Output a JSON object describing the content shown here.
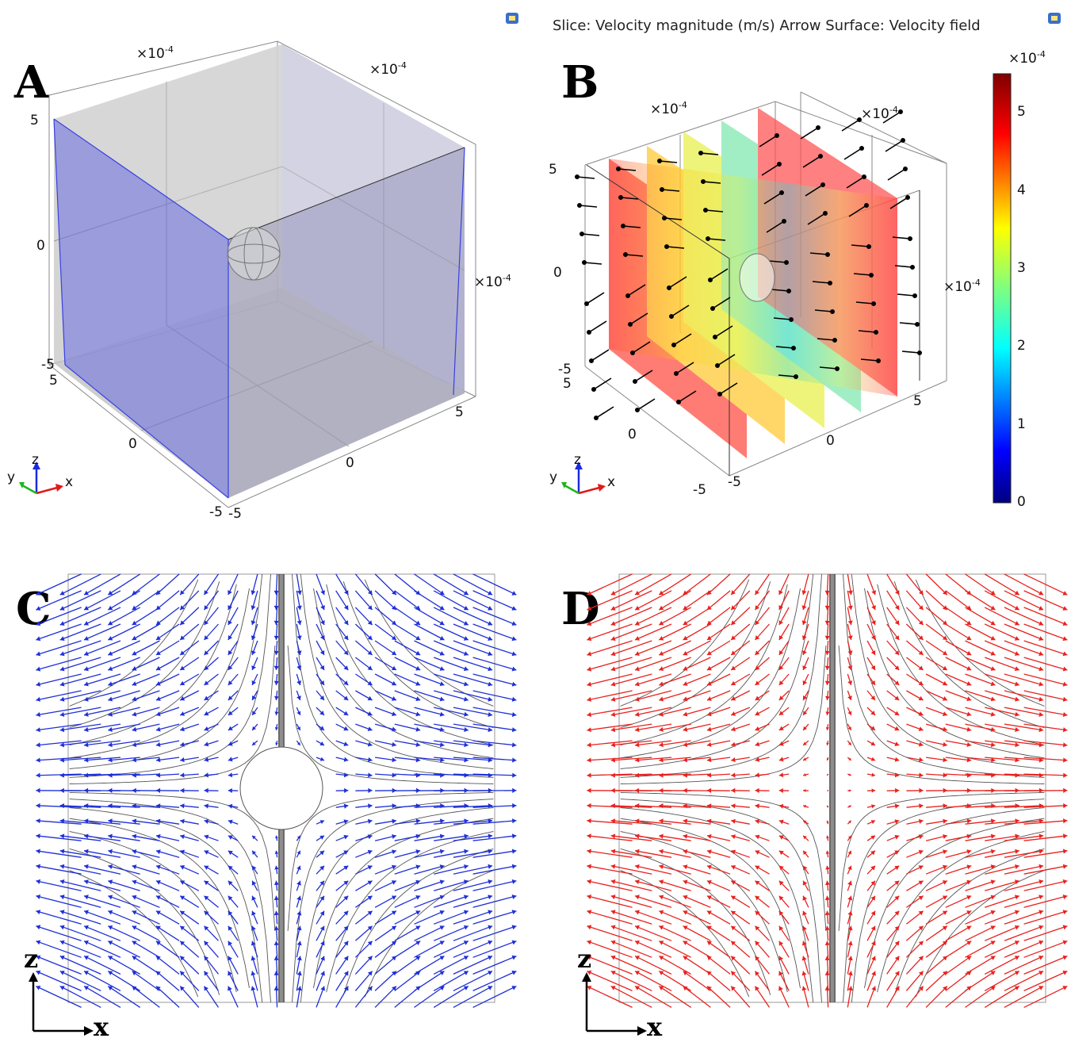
{
  "header": {
    "slice_title": "Slice: Velocity magnitude (m/s)  Arrow Surface: Velocity field"
  },
  "panels": {
    "a": {
      "letter": "A",
      "exponent_base": "×10",
      "exponent_power": "-4",
      "z_ticks": [
        "5",
        "0",
        "-5"
      ],
      "y_ticks": [
        "5",
        "0",
        "-5"
      ],
      "x_ticks": [
        "-5",
        "0",
        "5"
      ]
    },
    "b": {
      "letter": "B",
      "exponent_base": "×10",
      "exponent_power": "-4",
      "z_ticks": [
        "5",
        "0",
        "-5"
      ],
      "y_ticks": [
        "5",
        "0",
        "-5"
      ],
      "x_ticks": [
        "-5",
        "0",
        "5"
      ]
    },
    "c": {
      "letter": "C",
      "arrow_color": "#1f2fd6"
    },
    "d": {
      "letter": "D",
      "arrow_color": "#e8221e"
    }
  },
  "colorbar": {
    "exponent_base": "×10",
    "exponent_power": "-4",
    "ticks": [
      "5",
      "4",
      "3",
      "2",
      "1",
      "0"
    ],
    "min": 0,
    "max": 5.5
  },
  "triad": {
    "x": "x",
    "y": "y",
    "z": "z"
  },
  "axes_2d": {
    "x": "x",
    "z": "z"
  },
  "colors": {
    "box_blue": "#4a4de0",
    "box_face": "#b8b8d8",
    "gray_face": "#c8c8c8"
  }
}
